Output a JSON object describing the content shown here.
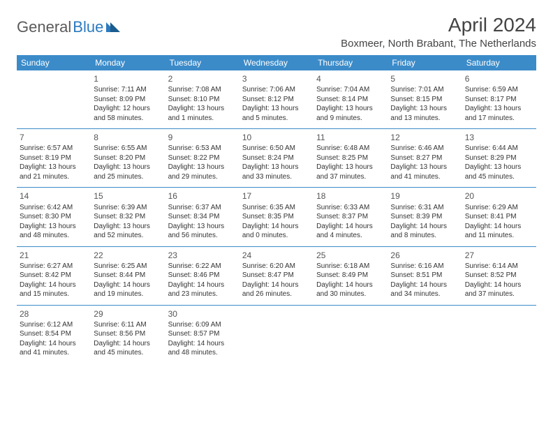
{
  "logo": {
    "part1": "General",
    "part2": "Blue"
  },
  "title": "April 2024",
  "location": "Boxmeer, North Brabant, The Netherlands",
  "colors": {
    "header_bg": "#3b8bc9",
    "header_text": "#ffffff",
    "border": "#3b8bc9",
    "logo_gray": "#5a5a5a",
    "logo_blue": "#2b7bbf"
  },
  "dayHeaders": [
    "Sunday",
    "Monday",
    "Tuesday",
    "Wednesday",
    "Thursday",
    "Friday",
    "Saturday"
  ],
  "weeks": [
    [
      null,
      {
        "n": "1",
        "sr": "7:11 AM",
        "ss": "8:09 PM",
        "dl": "12 hours and 58 minutes."
      },
      {
        "n": "2",
        "sr": "7:08 AM",
        "ss": "8:10 PM",
        "dl": "13 hours and 1 minutes."
      },
      {
        "n": "3",
        "sr": "7:06 AM",
        "ss": "8:12 PM",
        "dl": "13 hours and 5 minutes."
      },
      {
        "n": "4",
        "sr": "7:04 AM",
        "ss": "8:14 PM",
        "dl": "13 hours and 9 minutes."
      },
      {
        "n": "5",
        "sr": "7:01 AM",
        "ss": "8:15 PM",
        "dl": "13 hours and 13 minutes."
      },
      {
        "n": "6",
        "sr": "6:59 AM",
        "ss": "8:17 PM",
        "dl": "13 hours and 17 minutes."
      }
    ],
    [
      {
        "n": "7",
        "sr": "6:57 AM",
        "ss": "8:19 PM",
        "dl": "13 hours and 21 minutes."
      },
      {
        "n": "8",
        "sr": "6:55 AM",
        "ss": "8:20 PM",
        "dl": "13 hours and 25 minutes."
      },
      {
        "n": "9",
        "sr": "6:53 AM",
        "ss": "8:22 PM",
        "dl": "13 hours and 29 minutes."
      },
      {
        "n": "10",
        "sr": "6:50 AM",
        "ss": "8:24 PM",
        "dl": "13 hours and 33 minutes."
      },
      {
        "n": "11",
        "sr": "6:48 AM",
        "ss": "8:25 PM",
        "dl": "13 hours and 37 minutes."
      },
      {
        "n": "12",
        "sr": "6:46 AM",
        "ss": "8:27 PM",
        "dl": "13 hours and 41 minutes."
      },
      {
        "n": "13",
        "sr": "6:44 AM",
        "ss": "8:29 PM",
        "dl": "13 hours and 45 minutes."
      }
    ],
    [
      {
        "n": "14",
        "sr": "6:42 AM",
        "ss": "8:30 PM",
        "dl": "13 hours and 48 minutes."
      },
      {
        "n": "15",
        "sr": "6:39 AM",
        "ss": "8:32 PM",
        "dl": "13 hours and 52 minutes."
      },
      {
        "n": "16",
        "sr": "6:37 AM",
        "ss": "8:34 PM",
        "dl": "13 hours and 56 minutes."
      },
      {
        "n": "17",
        "sr": "6:35 AM",
        "ss": "8:35 PM",
        "dl": "14 hours and 0 minutes."
      },
      {
        "n": "18",
        "sr": "6:33 AM",
        "ss": "8:37 PM",
        "dl": "14 hours and 4 minutes."
      },
      {
        "n": "19",
        "sr": "6:31 AM",
        "ss": "8:39 PM",
        "dl": "14 hours and 8 minutes."
      },
      {
        "n": "20",
        "sr": "6:29 AM",
        "ss": "8:41 PM",
        "dl": "14 hours and 11 minutes."
      }
    ],
    [
      {
        "n": "21",
        "sr": "6:27 AM",
        "ss": "8:42 PM",
        "dl": "14 hours and 15 minutes."
      },
      {
        "n": "22",
        "sr": "6:25 AM",
        "ss": "8:44 PM",
        "dl": "14 hours and 19 minutes."
      },
      {
        "n": "23",
        "sr": "6:22 AM",
        "ss": "8:46 PM",
        "dl": "14 hours and 23 minutes."
      },
      {
        "n": "24",
        "sr": "6:20 AM",
        "ss": "8:47 PM",
        "dl": "14 hours and 26 minutes."
      },
      {
        "n": "25",
        "sr": "6:18 AM",
        "ss": "8:49 PM",
        "dl": "14 hours and 30 minutes."
      },
      {
        "n": "26",
        "sr": "6:16 AM",
        "ss": "8:51 PM",
        "dl": "14 hours and 34 minutes."
      },
      {
        "n": "27",
        "sr": "6:14 AM",
        "ss": "8:52 PM",
        "dl": "14 hours and 37 minutes."
      }
    ],
    [
      {
        "n": "28",
        "sr": "6:12 AM",
        "ss": "8:54 PM",
        "dl": "14 hours and 41 minutes."
      },
      {
        "n": "29",
        "sr": "6:11 AM",
        "ss": "8:56 PM",
        "dl": "14 hours and 45 minutes."
      },
      {
        "n": "30",
        "sr": "6:09 AM",
        "ss": "8:57 PM",
        "dl": "14 hours and 48 minutes."
      },
      null,
      null,
      null,
      null
    ]
  ],
  "labels": {
    "sunrise": "Sunrise: ",
    "sunset": "Sunset: ",
    "daylight": "Daylight: "
  }
}
